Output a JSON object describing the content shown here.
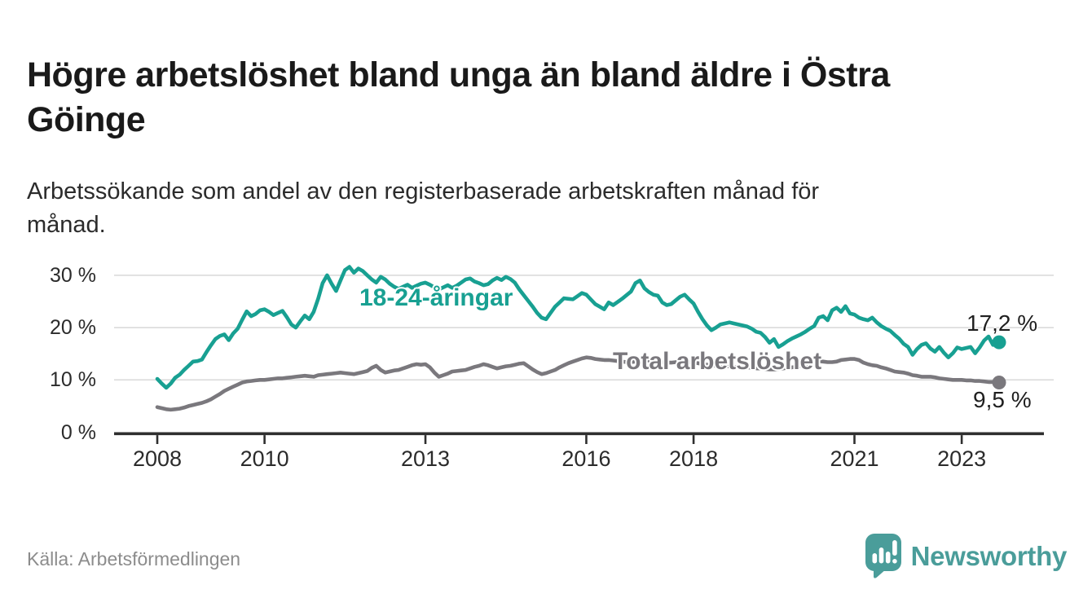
{
  "header": {
    "title_lines": [
      "Högre arbetslöshet bland unga än bland äldre i Östra",
      "Göinge"
    ],
    "title": "Högre arbetslöshet bland unga än bland äldre i Östra Göinge",
    "subtitle_lines": [
      "Arbetssökande som andel av den registerbaserade arbetskraften månad för",
      "månad."
    ]
  },
  "footer": {
    "source": "Källa: Arbetsförmedlingen",
    "logo_text": "Newsworthy",
    "logo_icon": "newsworthy-speech-bubble-chart-icon"
  },
  "colors": {
    "youth": "#18a092",
    "total": "#7a787d",
    "grid": "#d8d8d8",
    "axis": "#2f2f2f",
    "annotation": "#1f1f1f",
    "logo": "#4a9d9a"
  },
  "chart_data": {
    "type": "line",
    "frequency": "monthly",
    "x_start": "2008-01",
    "x_end": "2023-09",
    "grid": true,
    "legend_position": "inline-labels",
    "ylim": [
      0,
      32
    ],
    "y_ticks": [
      {
        "label": "30 %",
        "value": 30
      },
      {
        "label": "20 %",
        "value": 20
      },
      {
        "label": "10 %",
        "value": 10
      },
      {
        "label": "0 %",
        "value": 0
      }
    ],
    "x_ticks": [
      {
        "label": "2008",
        "year": 2008
      },
      {
        "label": "2010",
        "year": 2010
      },
      {
        "label": "2013",
        "year": 2013
      },
      {
        "label": "2016",
        "year": 2016
      },
      {
        "label": "2018",
        "year": 2018
      },
      {
        "label": "2021",
        "year": 2021
      },
      {
        "label": "2023",
        "year": 2023
      }
    ],
    "series": [
      {
        "name": "18-24-åringar",
        "color": "#18a092",
        "end_label": "17,2 %",
        "end_value": 17.2,
        "values": [
          10.2,
          9.3,
          8.5,
          9.3,
          10.4,
          11.0,
          11.9,
          12.7,
          13.5,
          13.6,
          13.9,
          15.3,
          16.6,
          17.8,
          18.4,
          18.7,
          17.6,
          18.9,
          19.8,
          21.5,
          23.1,
          22.2,
          22.6,
          23.3,
          23.5,
          23.0,
          22.4,
          22.8,
          23.2,
          22.0,
          20.6,
          20.0,
          21.2,
          22.3,
          21.6,
          23.0,
          25.5,
          28.5,
          30.0,
          28.4,
          27.0,
          29.0,
          31.0,
          31.6,
          30.5,
          31.3,
          30.8,
          30.0,
          29.2,
          28.6,
          29.7,
          29.2,
          28.4,
          27.8,
          27.4,
          27.8,
          28.2,
          27.6,
          28.0,
          28.4,
          28.6,
          28.2,
          27.7,
          27.3,
          27.7,
          28.1,
          27.6,
          28.0,
          28.6,
          29.2,
          29.4,
          28.8,
          28.5,
          28.1,
          28.3,
          29.0,
          29.5,
          29.1,
          29.7,
          29.3,
          28.6,
          27.3,
          26.2,
          25.1,
          24.0,
          22.8,
          21.9,
          21.6,
          22.8,
          24.0,
          24.8,
          25.6,
          25.5,
          25.4,
          26.0,
          26.6,
          26.3,
          25.4,
          24.5,
          24.0,
          23.5,
          24.8,
          24.3,
          24.9,
          25.5,
          26.2,
          26.9,
          28.5,
          29.0,
          27.5,
          26.8,
          26.3,
          26.1,
          24.8,
          24.3,
          24.5,
          25.2,
          25.9,
          26.3,
          25.4,
          24.6,
          23.0,
          21.6,
          20.4,
          19.5,
          20.0,
          20.6,
          20.8,
          21.0,
          20.8,
          20.6,
          20.4,
          20.2,
          19.8,
          19.2,
          19.0,
          18.2,
          17.1,
          17.8,
          16.3,
          16.8,
          17.4,
          17.9,
          18.3,
          18.7,
          19.2,
          19.8,
          20.3,
          21.9,
          22.2,
          21.4,
          23.3,
          23.8,
          23.0,
          24.1,
          22.7,
          22.5,
          21.9,
          21.6,
          21.4,
          21.9,
          21.0,
          20.3,
          19.8,
          19.4,
          18.6,
          17.9,
          16.9,
          16.3,
          14.8,
          15.9,
          16.7,
          17.0,
          16.0,
          15.4,
          16.3,
          15.2,
          14.3,
          15.1,
          16.2,
          15.9,
          16.1,
          16.3,
          15.1,
          16.2,
          17.5,
          18.3,
          16.7,
          17.2
        ]
      },
      {
        "name": "Total arbetslöshet",
        "color": "#7a787d",
        "end_label": "9,5 %",
        "end_value": 9.5,
        "values": [
          4.8,
          4.6,
          4.4,
          4.3,
          4.4,
          4.5,
          4.7,
          5.0,
          5.2,
          5.4,
          5.6,
          5.9,
          6.3,
          6.8,
          7.3,
          7.9,
          8.3,
          8.7,
          9.1,
          9.5,
          9.7,
          9.8,
          9.9,
          10.0,
          10.0,
          10.1,
          10.2,
          10.3,
          10.3,
          10.4,
          10.5,
          10.6,
          10.7,
          10.8,
          10.7,
          10.6,
          10.9,
          11.0,
          11.1,
          11.2,
          11.3,
          11.4,
          11.3,
          11.2,
          11.1,
          11.3,
          11.5,
          11.7,
          12.3,
          12.7,
          11.9,
          11.4,
          11.6,
          11.8,
          11.9,
          12.2,
          12.5,
          12.8,
          13.0,
          12.9,
          13.0,
          12.4,
          11.4,
          10.6,
          10.9,
          11.2,
          11.6,
          11.7,
          11.8,
          11.9,
          12.2,
          12.5,
          12.7,
          13.0,
          12.8,
          12.5,
          12.2,
          12.4,
          12.6,
          12.7,
          12.9,
          13.1,
          13.2,
          12.6,
          12.0,
          11.5,
          11.1,
          11.3,
          11.6,
          11.9,
          12.4,
          12.8,
          13.2,
          13.5,
          13.8,
          14.1,
          14.3,
          14.2,
          14.0,
          13.9,
          13.8,
          13.8,
          13.7,
          13.6,
          13.5,
          13.4,
          13.4,
          13.5,
          13.6,
          13.7,
          13.7,
          13.6,
          13.5,
          13.4,
          13.3,
          13.3,
          13.4,
          13.5,
          13.5,
          13.4,
          13.3,
          13.2,
          13.0,
          12.9,
          12.8,
          12.7,
          12.7,
          12.6,
          12.6,
          12.5,
          12.5,
          12.4,
          12.4,
          12.3,
          12.2,
          12.2,
          12.1,
          12.0,
          12.0,
          12.1,
          12.2,
          12.3,
          12.4,
          12.5,
          12.7,
          12.9,
          13.2,
          13.5,
          13.6,
          13.5,
          13.4,
          13.4,
          13.5,
          13.8,
          13.9,
          14.0,
          14.0,
          13.8,
          13.3,
          13.0,
          12.8,
          12.7,
          12.4,
          12.2,
          11.9,
          11.6,
          11.5,
          11.4,
          11.2,
          10.9,
          10.8,
          10.6,
          10.6,
          10.6,
          10.5,
          10.3,
          10.2,
          10.1,
          10.0,
          10.0,
          10.0,
          9.9,
          9.9,
          9.8,
          9.8,
          9.7,
          9.6,
          9.6,
          9.5
        ]
      }
    ]
  }
}
